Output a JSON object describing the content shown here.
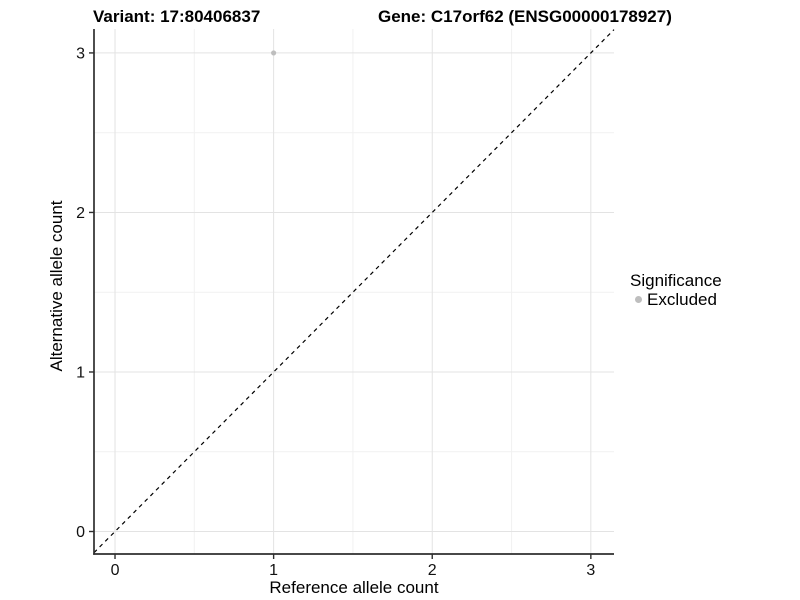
{
  "chart_data": {
    "type": "scatter",
    "title_left": "Variant: 17:80406837",
    "title_right": "Gene: C17orf62 (ENSG00000178927)",
    "xlabel": "Reference allele count",
    "ylabel": "Alternative allele count",
    "x_ticks": [
      0,
      1,
      2,
      3
    ],
    "y_ticks": [
      0,
      1,
      2,
      3
    ],
    "x_minor_ticks": [
      0.5,
      1.5,
      2.5
    ],
    "y_minor_ticks": [
      0.5,
      1.5,
      2.5
    ],
    "xlim": [
      -0.1325,
      3.146
    ],
    "ylim": [
      -0.141,
      3.15
    ],
    "grid": "major-and-minor",
    "identity_line": {
      "type": "dashed",
      "equation": "y = x",
      "color": "#000000"
    },
    "points": [
      {
        "x": 1,
        "y": 3,
        "series": "Excluded"
      }
    ],
    "legend": {
      "title": "Significance",
      "position": "right",
      "items": [
        {
          "label": "Excluded",
          "color": "#bebebe"
        }
      ]
    },
    "colors": {
      "background": "#ffffff",
      "panel_background": "#ffffff",
      "grid_major": "#e3e3e3",
      "grid_minor": "#f1f1f1",
      "axis_line": "#2e2e2e",
      "tick_mark": "#2e2e2e",
      "tick_label": "#111111",
      "point": "#bebebe"
    }
  }
}
